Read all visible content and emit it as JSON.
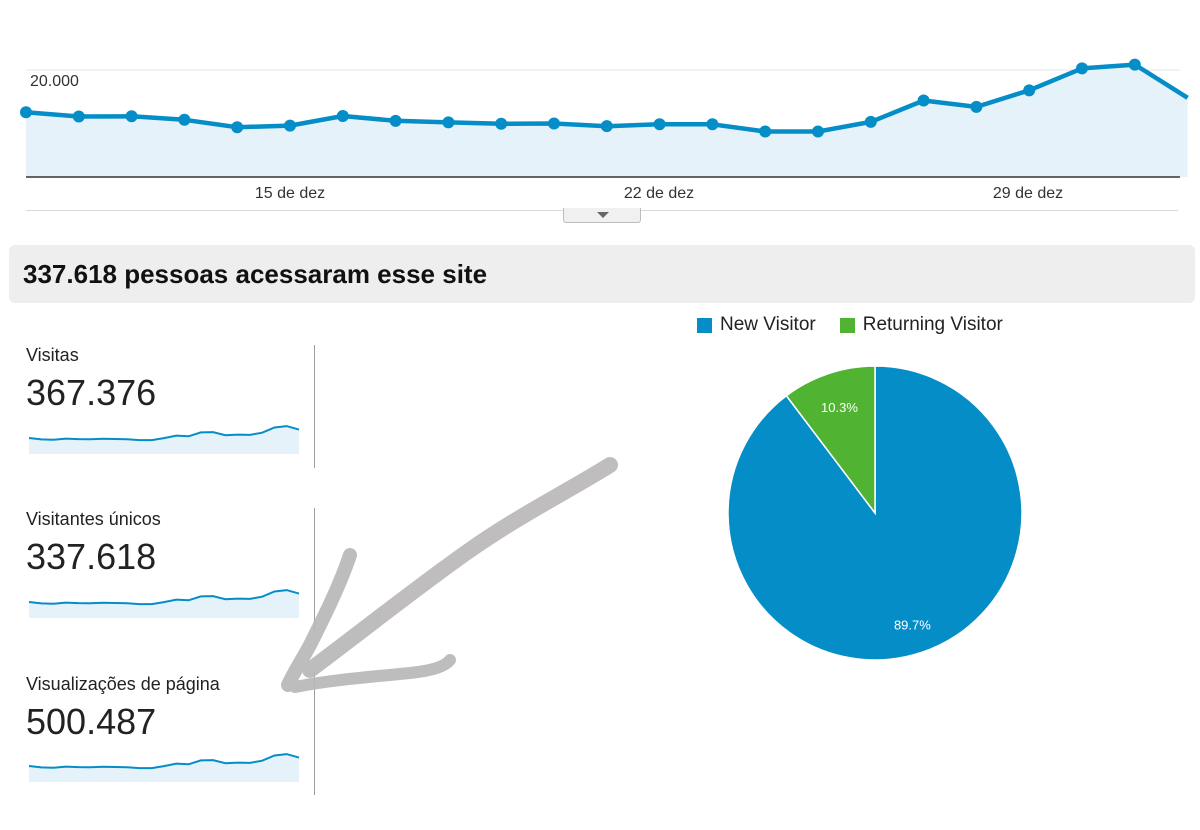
{
  "colors": {
    "accent_blue": "#058dc7",
    "returning_green": "#50b432",
    "area_fill": "#e6f2fa",
    "pen_gray": "#b8b6b6"
  },
  "chart_data": [
    {
      "type": "area",
      "ytick_label": "20.000",
      "ytick_value": 20000,
      "xtick_labels": [
        "15 de dez",
        "22 de dez",
        "29 de dez"
      ],
      "values": [
        12100,
        11300,
        11350,
        10700,
        9300,
        9600,
        11400,
        10500,
        10200,
        9950,
        10000,
        9500,
        9850,
        9850,
        8500,
        8500,
        10300,
        14300,
        13100,
        16200,
        20300,
        21000,
        14800
      ]
    },
    {
      "type": "pie",
      "slices": [
        {
          "label": "New Visitor",
          "value": 89.7,
          "display": "89.7%",
          "color": "#058dc7"
        },
        {
          "label": "Returning Visitor",
          "value": 10.3,
          "display": "10.3%",
          "color": "#50b432"
        }
      ],
      "legend": "top"
    }
  ],
  "summary": {
    "headline": "337.618 pessoas acessaram esse site"
  },
  "metrics": [
    {
      "label": "Visitas",
      "value": "367.376"
    },
    {
      "label": "Visitantes únicos",
      "value": "337.618"
    },
    {
      "label": "Visualizações de página",
      "value": "500.487"
    }
  ],
  "sparkline": [
    10,
    9,
    8.7,
    9.6,
    9.2,
    9.1,
    9.4,
    9.3,
    9.1,
    8.5,
    8.5,
    9.9,
    11.7,
    11.2,
    14,
    14.2,
    12,
    12.4,
    12.2,
    13.8,
    17.5,
    18.5,
    16
  ]
}
